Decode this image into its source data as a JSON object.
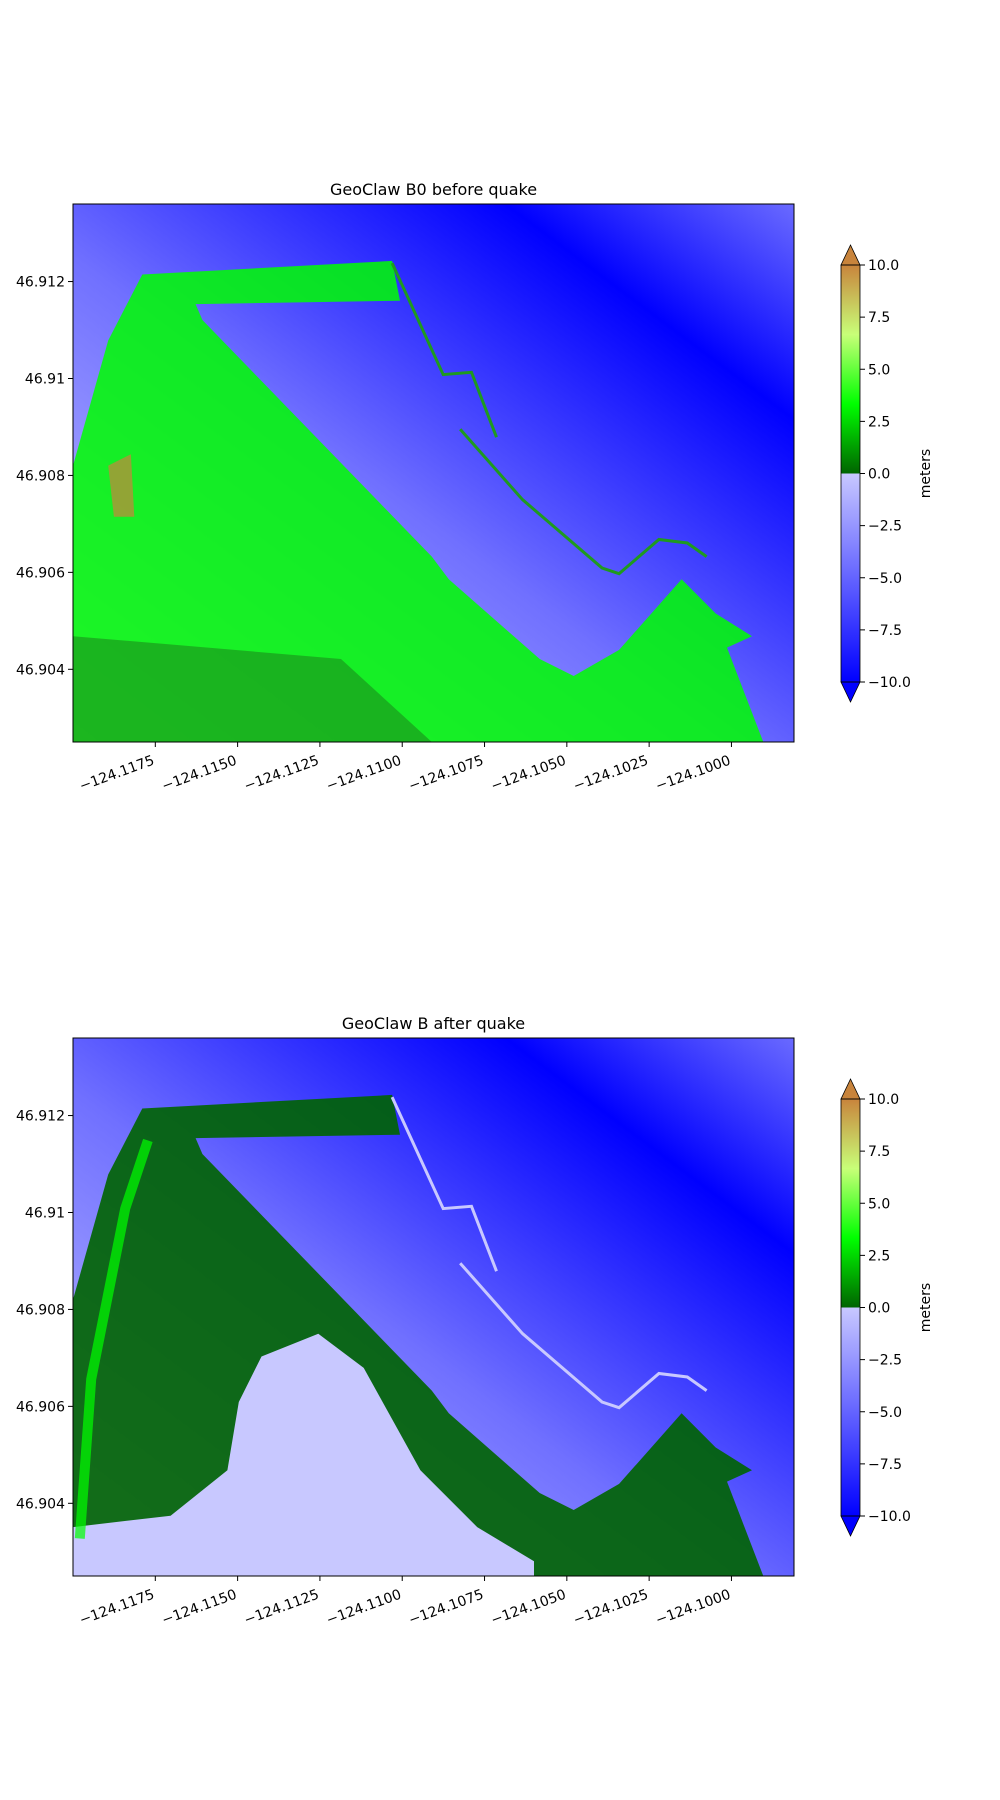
{
  "chart_data": [
    {
      "type": "heatmap",
      "title": "GeoClaw B0 before quake",
      "xlim": [
        -124.12,
        -124.0981
      ],
      "ylim": [
        46.9025,
        46.9136
      ],
      "xticks": [
        {
          "value": -124.1175,
          "label": "−124.1175"
        },
        {
          "value": -124.115,
          "label": "−124.1150"
        },
        {
          "value": -124.1125,
          "label": "−124.1125"
        },
        {
          "value": -124.11,
          "label": "−124.1100"
        },
        {
          "value": -124.1075,
          "label": "−124.1075"
        },
        {
          "value": -124.105,
          "label": "−124.1050"
        },
        {
          "value": -124.1025,
          "label": "−124.1025"
        },
        {
          "value": -124.1,
          "label": "−124.1000"
        }
      ],
      "yticks": [
        46.904,
        46.906,
        46.908,
        46.91,
        46.912
      ],
      "colorbar": {
        "label": "meters",
        "lim": [
          -10,
          10
        ],
        "ticks": [
          {
            "value": -10,
            "label": "−10.0"
          },
          {
            "value": -7.5,
            "label": "−7.5"
          },
          {
            "value": -5,
            "label": "−5.0"
          },
          {
            "value": -2.5,
            "label": "−2.5"
          },
          {
            "value": 0,
            "label": "0.0"
          },
          {
            "value": 2.5,
            "label": "2.5"
          },
          {
            "value": 5,
            "label": "5.0"
          },
          {
            "value": 7.5,
            "label": "7.5"
          },
          {
            "value": 10,
            "label": "10.0"
          }
        ],
        "colors_negative": [
          "#0000ff",
          "#c8c8ff"
        ],
        "colors_positive": [
          "#006400",
          "#00ff00",
          "#c8ff78",
          "#c8843c"
        ]
      }
    },
    {
      "type": "heatmap",
      "title": "GeoClaw B after quake",
      "xlim": [
        -124.12,
        -124.0981
      ],
      "ylim": [
        46.9025,
        46.9136
      ],
      "xticks": [
        {
          "value": -124.1175,
          "label": "−124.1175"
        },
        {
          "value": -124.115,
          "label": "−124.1150"
        },
        {
          "value": -124.1125,
          "label": "−124.1125"
        },
        {
          "value": -124.11,
          "label": "−124.1100"
        },
        {
          "value": -124.1075,
          "label": "−124.1075"
        },
        {
          "value": -124.105,
          "label": "−124.1050"
        },
        {
          "value": -124.1025,
          "label": "−124.1025"
        },
        {
          "value": -124.1,
          "label": "−124.1000"
        }
      ],
      "yticks": [
        46.904,
        46.906,
        46.908,
        46.91,
        46.912
      ],
      "colorbar": {
        "label": "meters",
        "lim": [
          -10,
          10
        ],
        "ticks": [
          {
            "value": -10,
            "label": "−10.0"
          },
          {
            "value": -7.5,
            "label": "−7.5"
          },
          {
            "value": -5,
            "label": "−5.0"
          },
          {
            "value": -2.5,
            "label": "−2.5"
          },
          {
            "value": 0,
            "label": "0.0"
          },
          {
            "value": 2.5,
            "label": "2.5"
          },
          {
            "value": 5,
            "label": "5.0"
          },
          {
            "value": 7.5,
            "label": "7.5"
          },
          {
            "value": 10,
            "label": "10.0"
          }
        ],
        "colors_negative": [
          "#0000ff",
          "#c8c8ff"
        ],
        "colors_positive": [
          "#006400",
          "#00ff00",
          "#c8ff78",
          "#c8843c"
        ]
      }
    }
  ]
}
